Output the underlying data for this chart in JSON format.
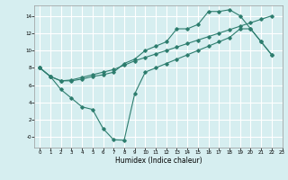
{
  "line1_x": [
    0,
    1,
    2,
    3,
    4,
    5,
    6,
    7,
    8,
    9,
    10,
    11,
    12,
    13,
    14,
    15,
    16,
    17,
    18,
    19,
    20,
    21,
    22
  ],
  "line1_y": [
    8.0,
    7.0,
    6.5,
    6.5,
    6.7,
    7.0,
    7.2,
    7.5,
    8.5,
    9.0,
    10.0,
    10.5,
    11.0,
    12.5,
    12.5,
    13.0,
    14.5,
    14.5,
    14.7,
    14.0,
    12.5,
    11.0,
    9.5
  ],
  "line2_x": [
    0,
    1,
    2,
    3,
    4,
    5,
    6,
    7,
    8,
    9,
    10,
    11,
    12,
    13,
    14,
    15,
    16,
    17,
    18,
    19,
    20,
    21,
    22
  ],
  "line2_y": [
    8.0,
    7.0,
    5.5,
    4.5,
    3.5,
    3.2,
    1.0,
    -0.3,
    -0.35,
    5.0,
    7.5,
    8.0,
    8.5,
    9.0,
    9.5,
    10.0,
    10.5,
    11.0,
    11.5,
    12.5,
    12.5,
    11.0,
    9.5
  ],
  "line3_x": [
    0,
    1,
    2,
    3,
    4,
    5,
    6,
    7,
    8,
    9,
    10,
    11,
    12,
    13,
    14,
    15,
    16,
    17,
    18,
    19,
    20,
    21,
    22
  ],
  "line3_y": [
    8.0,
    7.0,
    6.5,
    6.6,
    6.9,
    7.2,
    7.5,
    7.8,
    8.3,
    8.8,
    9.2,
    9.6,
    10.0,
    10.4,
    10.8,
    11.2,
    11.6,
    12.0,
    12.4,
    12.8,
    13.2,
    13.6,
    14.0
  ],
  "line_color": "#2d7d6e",
  "bg_color": "#d6eef0",
  "grid_color": "#ffffff",
  "xlabel": "Humidex (Indice chaleur)",
  "xlim": [
    -0.5,
    23
  ],
  "ylim": [
    -1.2,
    15.2
  ],
  "yticks": [
    0,
    2,
    4,
    6,
    8,
    10,
    12,
    14
  ],
  "xticks": [
    0,
    1,
    2,
    3,
    4,
    5,
    6,
    7,
    8,
    9,
    10,
    11,
    12,
    13,
    14,
    15,
    16,
    17,
    18,
    19,
    20,
    21,
    22,
    23
  ]
}
